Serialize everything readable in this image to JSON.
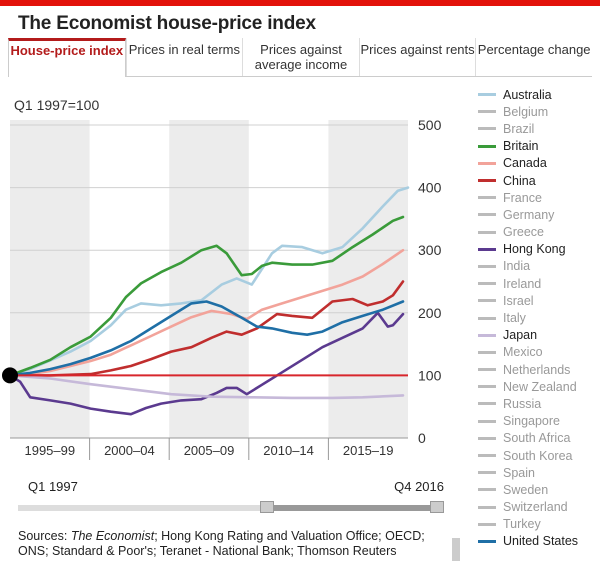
{
  "title": "The Economist house-price index",
  "tabs": [
    {
      "label": "House-price index",
      "active": true
    },
    {
      "label": "Prices in real terms",
      "active": false
    },
    {
      "label": "Prices against average income",
      "active": false
    },
    {
      "label": "Prices against rents",
      "active": false
    },
    {
      "label": "Percentage change",
      "active": false
    }
  ],
  "baseline_label": "Q1 1997=100",
  "range": {
    "start_label": "Q1 1997",
    "end_label": "Q4 2016"
  },
  "sources": {
    "prefix": "Sources: ",
    "italic": "The Economist",
    "rest": "; Hong Kong Rating and Valuation Office; OECD; ONS; Standard & Poor's; Teranet - National Bank; Thomson Reuters"
  },
  "colors": {
    "accent": "#e3120b",
    "baseline": "#d8262c",
    "band": "#ececec"
  },
  "chart_data": {
    "type": "line",
    "title": "",
    "xlabel": "",
    "ylabel": "",
    "xlim": [
      1997,
      2016.75
    ],
    "ylim": [
      0,
      500
    ],
    "yticks": [
      0,
      100,
      200,
      300,
      400,
      500
    ],
    "x_periods": [
      "1995–99",
      "2000–04",
      "2005–09",
      "2010–14",
      "2015–19"
    ],
    "baseline": 100,
    "start_point": {
      "x": 1997,
      "y": 100
    },
    "legend_position": "right",
    "legend": [
      {
        "name": "Australia",
        "active": true,
        "color": "#a8cde0"
      },
      {
        "name": "Belgium",
        "active": false
      },
      {
        "name": "Brazil",
        "active": false
      },
      {
        "name": "Britain",
        "active": true,
        "color": "#3a9b3a"
      },
      {
        "name": "Canada",
        "active": true,
        "color": "#f2a39a"
      },
      {
        "name": "China",
        "active": true,
        "color": "#c02e2e"
      },
      {
        "name": "France",
        "active": false
      },
      {
        "name": "Germany",
        "active": false
      },
      {
        "name": "Greece",
        "active": false
      },
      {
        "name": "Hong Kong",
        "active": true,
        "color": "#5b3a8f"
      },
      {
        "name": "India",
        "active": false
      },
      {
        "name": "Ireland",
        "active": false
      },
      {
        "name": "Israel",
        "active": false
      },
      {
        "name": "Italy",
        "active": false
      },
      {
        "name": "Japan",
        "active": true,
        "color": "#c6b9d9"
      },
      {
        "name": "Mexico",
        "active": false
      },
      {
        "name": "Netherlands",
        "active": false
      },
      {
        "name": "New Zealand",
        "active": false
      },
      {
        "name": "Russia",
        "active": false
      },
      {
        "name": "Singapore",
        "active": false
      },
      {
        "name": "South Africa",
        "active": false
      },
      {
        "name": "South Korea",
        "active": false
      },
      {
        "name": "Spain",
        "active": false
      },
      {
        "name": "Sweden",
        "active": false
      },
      {
        "name": "Switzerland",
        "active": false
      },
      {
        "name": "Turkey",
        "active": false
      },
      {
        "name": "United States",
        "active": true,
        "color": "#1f6fa6"
      }
    ],
    "series": [
      {
        "name": "Australia",
        "color": "#a8cde0",
        "points": [
          [
            1997,
            100
          ],
          [
            1998,
            110
          ],
          [
            1999,
            124
          ],
          [
            2000,
            138
          ],
          [
            2001,
            155
          ],
          [
            2002,
            180
          ],
          [
            2002.75,
            205
          ],
          [
            2003.5,
            215
          ],
          [
            2004.5,
            212
          ],
          [
            2005.5,
            215
          ],
          [
            2006.5,
            220
          ],
          [
            2007.5,
            245
          ],
          [
            2008.25,
            255
          ],
          [
            2009,
            245
          ],
          [
            2009.5,
            270
          ],
          [
            2010,
            295
          ],
          [
            2010.5,
            307
          ],
          [
            2011.5,
            305
          ],
          [
            2012.5,
            295
          ],
          [
            2013.5,
            305
          ],
          [
            2014.5,
            335
          ],
          [
            2015.5,
            370
          ],
          [
            2016.25,
            395
          ],
          [
            2016.75,
            400
          ]
        ]
      },
      {
        "name": "Britain",
        "color": "#3a9b3a",
        "points": [
          [
            1997,
            100
          ],
          [
            1998,
            112
          ],
          [
            1999,
            125
          ],
          [
            2000,
            145
          ],
          [
            2001,
            162
          ],
          [
            2002,
            192
          ],
          [
            2002.75,
            225
          ],
          [
            2003.5,
            247
          ],
          [
            2004.5,
            265
          ],
          [
            2005.5,
            280
          ],
          [
            2006.5,
            300
          ],
          [
            2007.25,
            307
          ],
          [
            2007.75,
            295
          ],
          [
            2008.5,
            260
          ],
          [
            2009,
            262
          ],
          [
            2009.5,
            275
          ],
          [
            2010,
            280
          ],
          [
            2011,
            277
          ],
          [
            2012,
            277
          ],
          [
            2013,
            283
          ],
          [
            2014,
            305
          ],
          [
            2015,
            325
          ],
          [
            2016,
            347
          ],
          [
            2016.5,
            353
          ]
        ]
      },
      {
        "name": "Canada",
        "color": "#f2a39a",
        "points": [
          [
            1997,
            100
          ],
          [
            1998,
            102
          ],
          [
            1999,
            107
          ],
          [
            2000,
            115
          ],
          [
            2001,
            123
          ],
          [
            2002,
            133
          ],
          [
            2003,
            148
          ],
          [
            2004,
            163
          ],
          [
            2005,
            178
          ],
          [
            2006,
            193
          ],
          [
            2007,
            203
          ],
          [
            2008,
            198
          ],
          [
            2008.75,
            190
          ],
          [
            2009.5,
            205
          ],
          [
            2010.5,
            215
          ],
          [
            2011.5,
            225
          ],
          [
            2012.5,
            235
          ],
          [
            2013.5,
            245
          ],
          [
            2014.5,
            258
          ],
          [
            2015.5,
            278
          ],
          [
            2016.5,
            300
          ]
        ]
      },
      {
        "name": "China",
        "color": "#c02e2e",
        "points": [
          [
            1997,
            100
          ],
          [
            1999,
            100
          ],
          [
            2001,
            102
          ],
          [
            2002,
            108
          ],
          [
            2003,
            115
          ],
          [
            2004,
            126
          ],
          [
            2005,
            138
          ],
          [
            2006,
            145
          ],
          [
            2007,
            160
          ],
          [
            2007.75,
            170
          ],
          [
            2008.5,
            165
          ],
          [
            2009.25,
            175
          ],
          [
            2010.25,
            198
          ],
          [
            2011,
            195
          ],
          [
            2012,
            192
          ],
          [
            2013,
            218
          ],
          [
            2014,
            222
          ],
          [
            2014.75,
            212
          ],
          [
            2015.5,
            218
          ],
          [
            2016,
            228
          ],
          [
            2016.5,
            250
          ]
        ]
      },
      {
        "name": "Hong Kong",
        "color": "#5b3a8f",
        "points": [
          [
            1997,
            100
          ],
          [
            1997.5,
            90
          ],
          [
            1998,
            65
          ],
          [
            1999,
            60
          ],
          [
            2000,
            55
          ],
          [
            2001,
            47
          ],
          [
            2002,
            42
          ],
          [
            2003,
            38
          ],
          [
            2003.75,
            48
          ],
          [
            2004.5,
            55
          ],
          [
            2005.5,
            60
          ],
          [
            2006.5,
            62
          ],
          [
            2007.25,
            72
          ],
          [
            2007.75,
            80
          ],
          [
            2008.25,
            80
          ],
          [
            2008.75,
            70
          ],
          [
            2009.5,
            85
          ],
          [
            2010.5,
            105
          ],
          [
            2011.5,
            125
          ],
          [
            2012.5,
            145
          ],
          [
            2013.5,
            160
          ],
          [
            2014.5,
            175
          ],
          [
            2015.25,
            200
          ],
          [
            2015.75,
            178
          ],
          [
            2016,
            180
          ],
          [
            2016.5,
            198
          ]
        ]
      },
      {
        "name": "Japan",
        "color": "#c6b9d9",
        "points": [
          [
            1997,
            100
          ],
          [
            1999,
            95
          ],
          [
            2001,
            86
          ],
          [
            2003,
            78
          ],
          [
            2005,
            70
          ],
          [
            2007,
            66
          ],
          [
            2009,
            65
          ],
          [
            2011,
            64
          ],
          [
            2013,
            64
          ],
          [
            2014.5,
            65
          ],
          [
            2016.5,
            68
          ]
        ]
      },
      {
        "name": "United States",
        "color": "#1f6fa6",
        "points": [
          [
            1997,
            100
          ],
          [
            1998,
            104
          ],
          [
            1999,
            110
          ],
          [
            2000,
            118
          ],
          [
            2001,
            128
          ],
          [
            2002,
            140
          ],
          [
            2003,
            155
          ],
          [
            2004,
            175
          ],
          [
            2005,
            195
          ],
          [
            2006,
            215
          ],
          [
            2006.75,
            218
          ],
          [
            2007.5,
            210
          ],
          [
            2008.5,
            192
          ],
          [
            2009.25,
            178
          ],
          [
            2010,
            175
          ],
          [
            2011,
            168
          ],
          [
            2011.75,
            165
          ],
          [
            2012.5,
            170
          ],
          [
            2013.5,
            185
          ],
          [
            2014.5,
            195
          ],
          [
            2015.5,
            205
          ],
          [
            2016.5,
            218
          ]
        ]
      }
    ]
  }
}
